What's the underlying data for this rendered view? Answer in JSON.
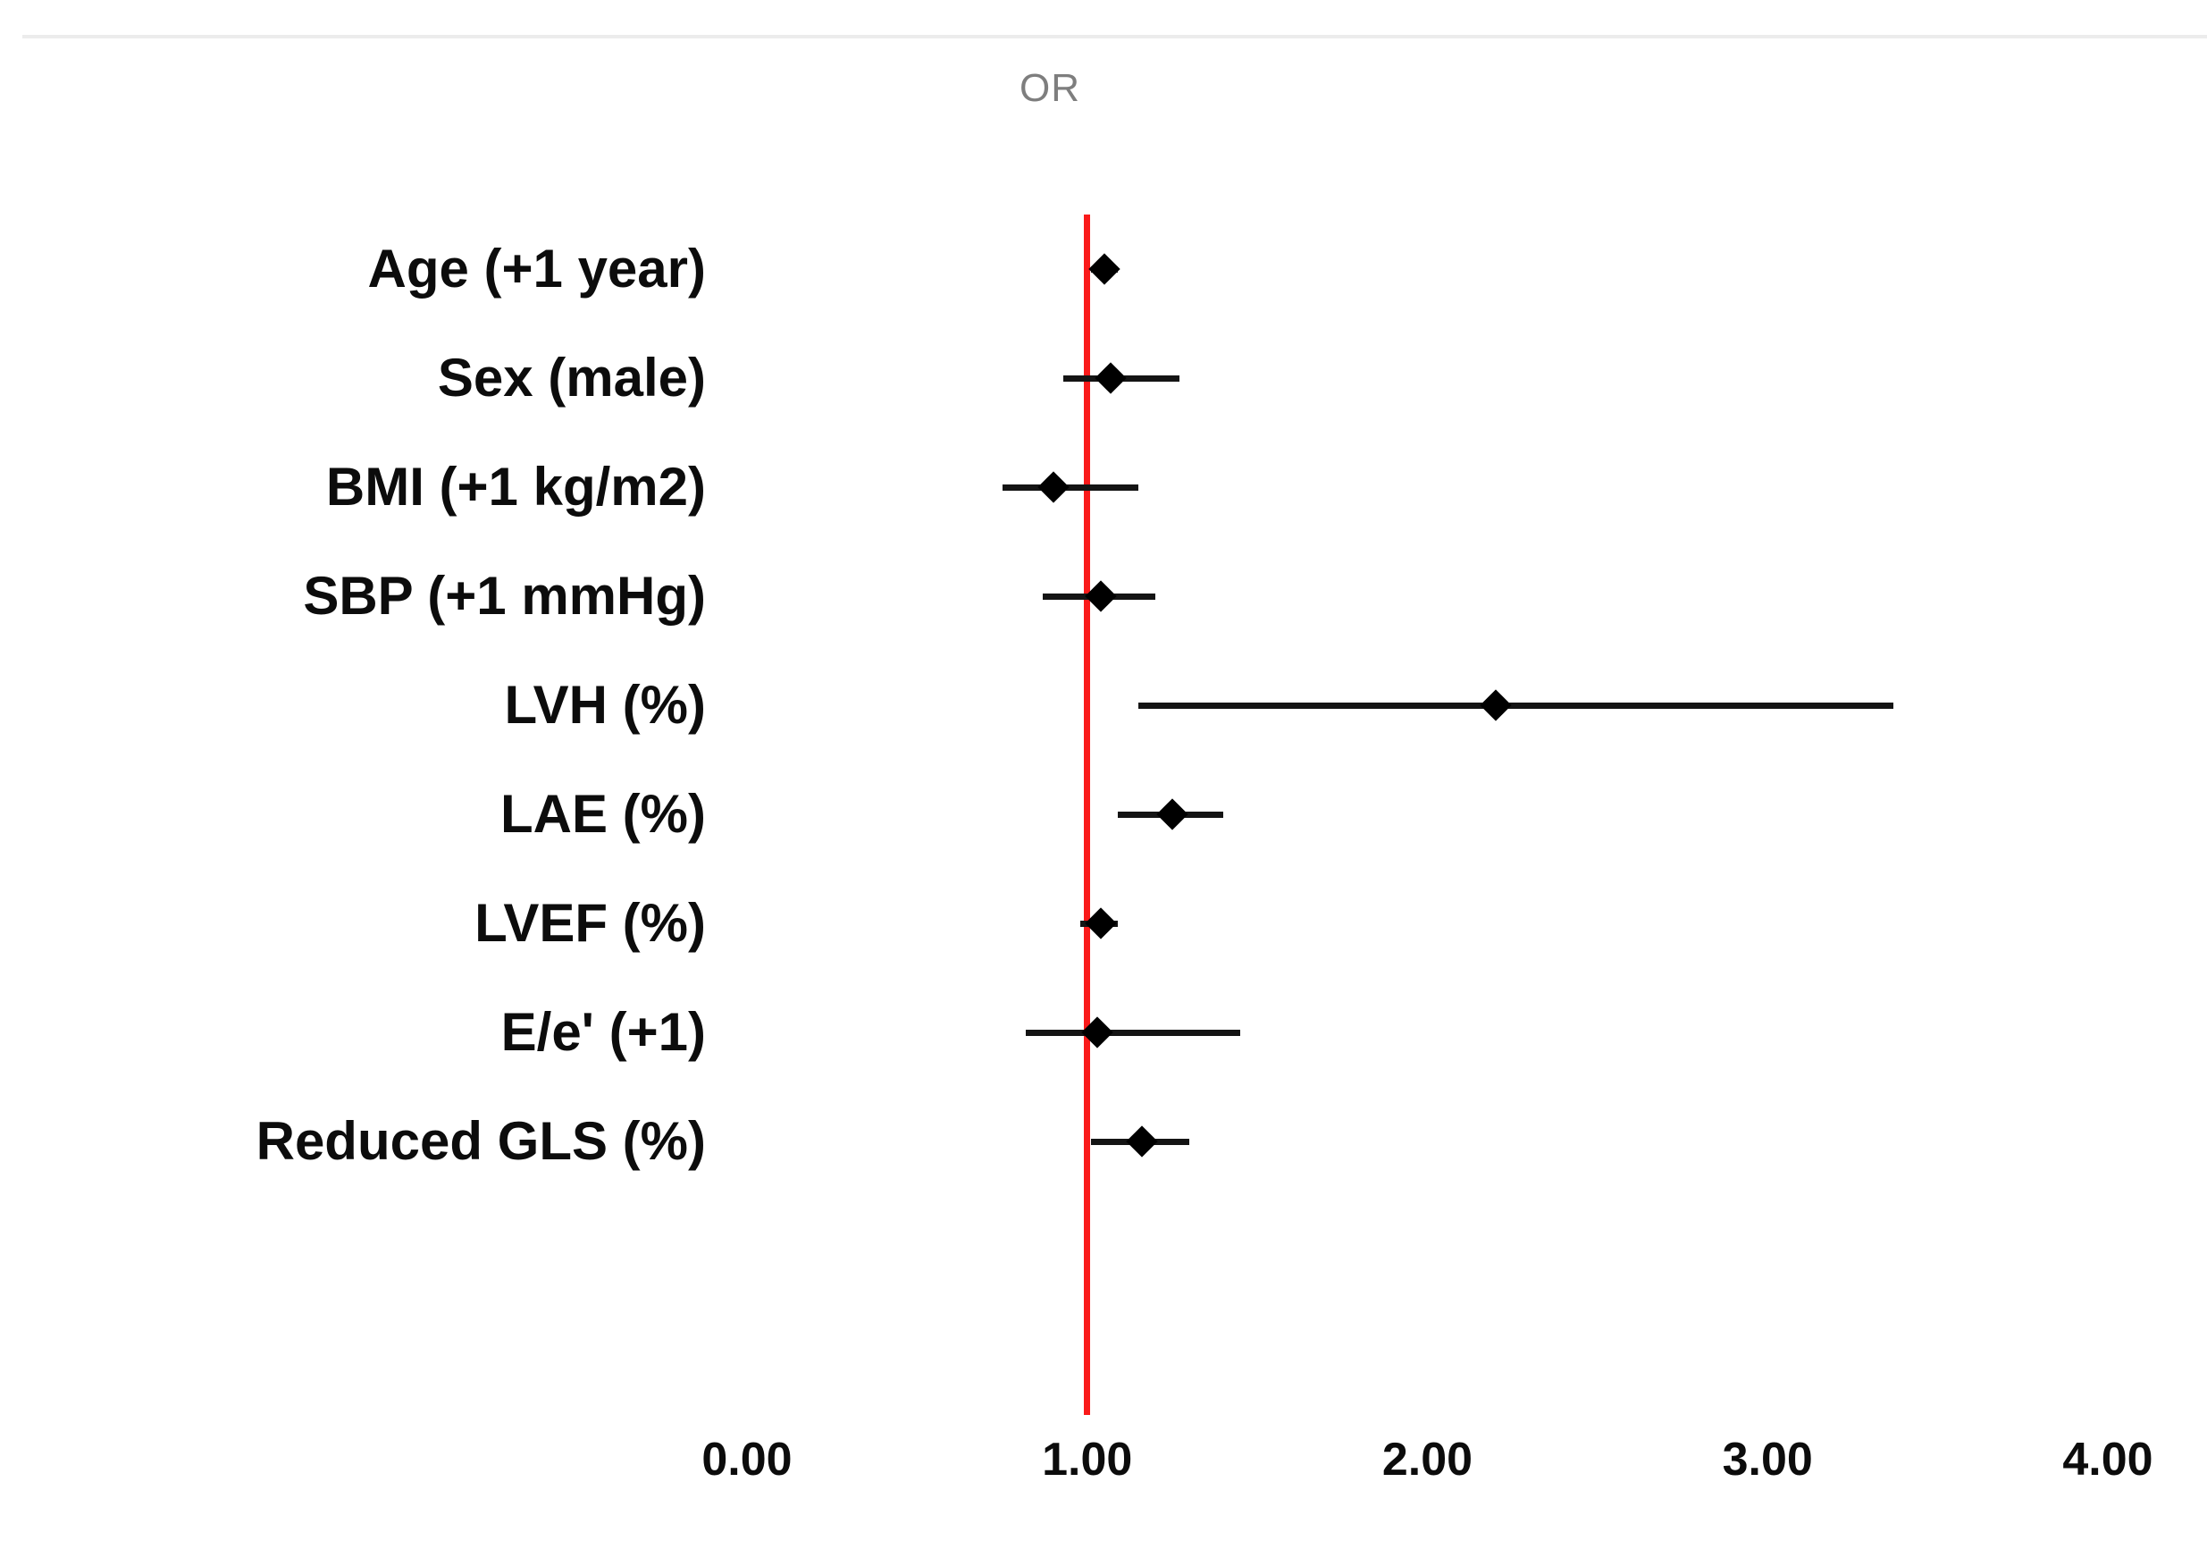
{
  "chart_title": "OR",
  "colors": {
    "reference_line": "#fa1a1a",
    "marker": "#000000",
    "ci_line": "#141414",
    "title_text": "#7e7e7e",
    "divider": "#ececec",
    "background": "#ffffff"
  },
  "chart_data": {
    "type": "scatter",
    "subtype": "forest-plot",
    "title": "OR",
    "xlabel": "",
    "ylabel": "",
    "xlim": [
      0,
      4
    ],
    "grid": false,
    "reference_value": 1.0,
    "tick_values": [
      0,
      1,
      2,
      3,
      4
    ],
    "tick_labels": [
      "0.00",
      "1.00",
      "2.00",
      "3.00",
      "4.00"
    ],
    "rows": [
      {
        "label": "Age (+1 year)",
        "or": 1.05,
        "ci_low": 1.01,
        "ci_high": 1.09
      },
      {
        "label": "Sex (male)",
        "or": 1.07,
        "ci_low": 0.93,
        "ci_high": 1.27
      },
      {
        "label": "BMI (+1 kg/m2)",
        "or": 0.9,
        "ci_low": 0.75,
        "ci_high": 1.15
      },
      {
        "label": "SBP (+1 mmHg)",
        "or": 1.04,
        "ci_low": 0.87,
        "ci_high": 1.2
      },
      {
        "label": "LVH (%)",
        "or": 2.2,
        "ci_low": 1.15,
        "ci_high": 3.37
      },
      {
        "label": "LAE (%)",
        "or": 1.25,
        "ci_low": 1.09,
        "ci_high": 1.4
      },
      {
        "label": "LVEF (%)",
        "or": 1.04,
        "ci_low": 0.98,
        "ci_high": 1.09
      },
      {
        "label": "E/e' (+1)",
        "or": 1.03,
        "ci_low": 0.82,
        "ci_high": 1.45
      },
      {
        "label": "Reduced GLS (%)",
        "or": 1.16,
        "ci_low": 1.01,
        "ci_high": 1.3
      }
    ]
  }
}
